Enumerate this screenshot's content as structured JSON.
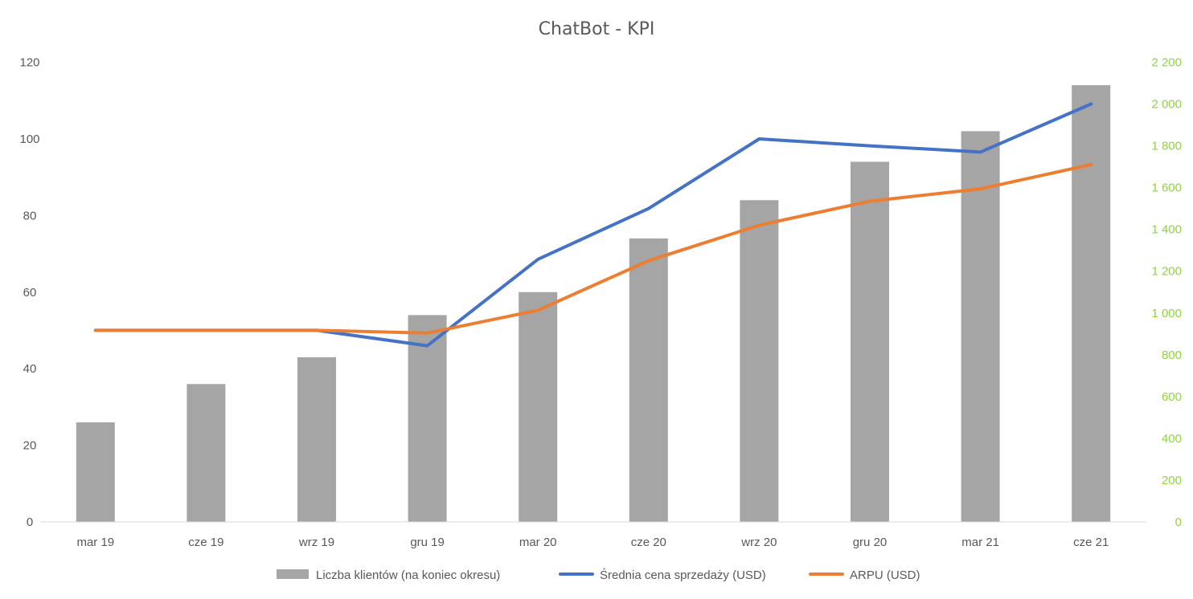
{
  "chart_data": {
    "type": "bar",
    "title": "ChatBot - KPI",
    "categories": [
      "mar 19",
      "cze 19",
      "wrz 19",
      "gru 19",
      "mar 20",
      "cze 20",
      "wrz 20",
      "gru 20",
      "mar 21",
      "cze 21"
    ],
    "series": [
      {
        "name": "Liczba klientów (na koniec okresu)",
        "type": "bar",
        "axis": "left",
        "color": "#a5a5a5",
        "values": [
          26,
          36,
          43,
          54,
          60,
          74,
          84,
          94,
          102,
          114
        ]
      },
      {
        "name": "Średnia cena sprzedaży (USD)",
        "type": "line",
        "axis": "right",
        "color": "#4472c4",
        "values": [
          917,
          917,
          917,
          843,
          1257,
          1500,
          1833,
          1800,
          1770,
          2000
        ]
      },
      {
        "name": "ARPU (USD)",
        "type": "line",
        "axis": "right",
        "color": "#ed7d31",
        "values": [
          917,
          917,
          917,
          904,
          1013,
          1250,
          1420,
          1535,
          1594,
          1710
        ]
      }
    ],
    "y_left": {
      "min": 0,
      "max": 120,
      "ticks": [
        "0",
        "20",
        "40",
        "60",
        "80",
        "100",
        "120"
      ]
    },
    "y_right": {
      "min": 0,
      "max": 2200,
      "ticks": [
        "0",
        "200",
        "400",
        "600",
        "800",
        "1 000",
        "1 200",
        "1 400",
        "1 600",
        "1 800",
        "2 000",
        "2 200"
      ],
      "color": "#8fd33f"
    },
    "grid": false,
    "legend": "bottom"
  }
}
